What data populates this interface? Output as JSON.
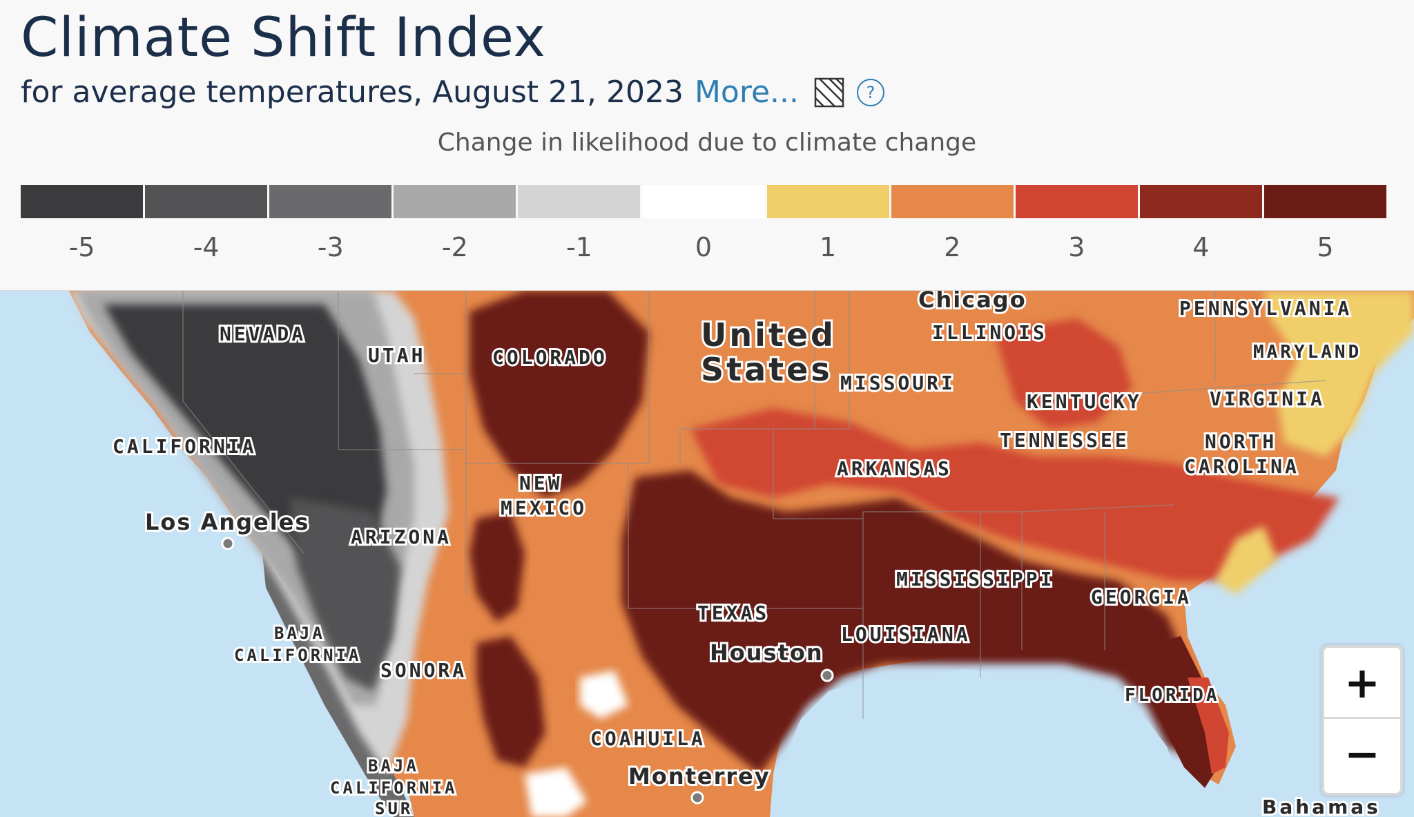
{
  "header": {
    "title": "Climate Shift Index",
    "subtitle": "for average temperatures, August 21, 2023",
    "more_link": "More...",
    "hatch_icon": "hatch-pattern-icon",
    "help_icon": "question-circle-icon",
    "help_glyph": "?"
  },
  "legend": {
    "caption": "Change in likelihood due to climate change",
    "bins": [
      {
        "label": "-5",
        "color": "#3b3b3d"
      },
      {
        "label": "-4",
        "color": "#535355"
      },
      {
        "label": "-3",
        "color": "#6a6a6c"
      },
      {
        "label": "-2",
        "color": "#a9a9aa"
      },
      {
        "label": "-1",
        "color": "#d4d4d4"
      },
      {
        "label": "0",
        "color": "#ffffff"
      },
      {
        "label": "1",
        "color": "#f0cf6b"
      },
      {
        "label": "2",
        "color": "#e5884a"
      },
      {
        "label": "3",
        "color": "#d04632"
      },
      {
        "label": "4",
        "color": "#8e2a1d"
      },
      {
        "label": "5",
        "color": "#6b1c14"
      }
    ]
  },
  "map": {
    "ocean_color": "#c6e2f5",
    "labels": {
      "chicago": "Chicago",
      "pennsylvania": "PENNSYLVANIA",
      "nevada": "NEVADA",
      "utah": "UTAH",
      "colorado": "COLORADO",
      "united": "United",
      "states": "States",
      "illinois": "ILLINOIS",
      "maryland": "MARYLAND",
      "missouri": "MISSOURI",
      "kentucky": "KENTUCKY",
      "virginia": "VIRGINIA",
      "california": "CALIFORNIA",
      "tennessee": "TENNESSEE",
      "north": "NORTH",
      "carolina": "CAROLINA",
      "los_angeles": "Los Angeles",
      "arkansas": "ARKANSAS",
      "new": "NEW",
      "mexico": "MEXICO",
      "arizona": "ARIZONA",
      "mississippi": "MISSISSIPPI",
      "georgia": "GEORGIA",
      "baja": "BAJA",
      "california_mx": "CALIFORNIA",
      "texas": "TEXAS",
      "louisiana": "LOUISIANA",
      "houston": "Houston",
      "sonora": "SONORA",
      "florida": "FLORIDA",
      "coahuila": "COAHUILA",
      "baja_sur1": "BAJA",
      "baja_sur2": "CALIFORNIA",
      "baja_sur3": "SUR",
      "monterrey": "Monterrey",
      "bahamas": "Bahamas"
    }
  },
  "zoom": {
    "in_label": "+",
    "out_label": "−"
  }
}
